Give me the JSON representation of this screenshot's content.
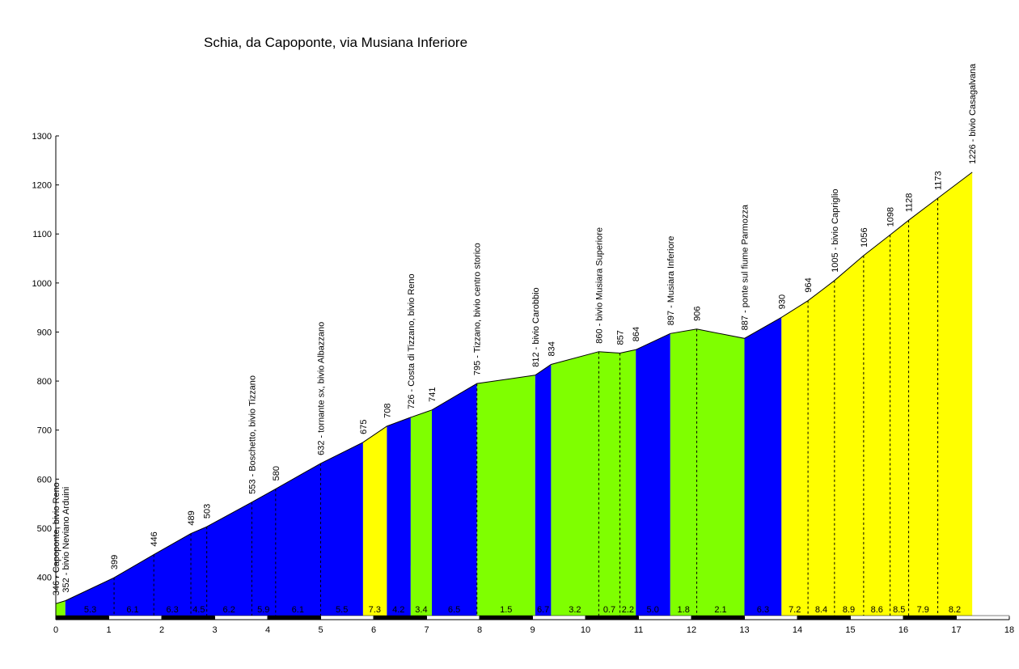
{
  "chart_data": {
    "type": "area",
    "title": "Schia, da Capoponte, via Musiana Inferiore",
    "xlabel": "",
    "ylabel": "",
    "xlim": [
      0,
      18
    ],
    "ylim": [
      320,
      1300
    ],
    "x_ticks": [
      0,
      1,
      2,
      3,
      4,
      5,
      6,
      7,
      8,
      9,
      10,
      11,
      12,
      13,
      14,
      15,
      16,
      17,
      18
    ],
    "y_ticks": [
      400,
      500,
      600,
      700,
      800,
      900,
      1000,
      1100,
      1200,
      1300
    ],
    "grid": false,
    "colors": {
      "green": "#7fff00",
      "blue": "#0000ff",
      "yellow": "#ffff00",
      "outline": "#000000"
    },
    "profile": [
      {
        "x": 0.0,
        "y": 346
      },
      {
        "x": 0.18,
        "y": 352
      },
      {
        "x": 1.1,
        "y": 399
      },
      {
        "x": 1.85,
        "y": 446
      },
      {
        "x": 2.55,
        "y": 489
      },
      {
        "x": 2.85,
        "y": 503
      },
      {
        "x": 3.7,
        "y": 553
      },
      {
        "x": 4.15,
        "y": 580
      },
      {
        "x": 5.0,
        "y": 632
      },
      {
        "x": 5.8,
        "y": 675
      },
      {
        "x": 6.25,
        "y": 708
      },
      {
        "x": 6.7,
        "y": 726
      },
      {
        "x": 7.1,
        "y": 741
      },
      {
        "x": 7.95,
        "y": 795
      },
      {
        "x": 9.05,
        "y": 812
      },
      {
        "x": 9.35,
        "y": 834
      },
      {
        "x": 10.25,
        "y": 860
      },
      {
        "x": 10.65,
        "y": 857
      },
      {
        "x": 10.95,
        "y": 864
      },
      {
        "x": 11.6,
        "y": 897
      },
      {
        "x": 12.1,
        "y": 906
      },
      {
        "x": 13.0,
        "y": 887
      },
      {
        "x": 13.7,
        "y": 930
      },
      {
        "x": 14.2,
        "y": 964
      },
      {
        "x": 14.7,
        "y": 1005
      },
      {
        "x": 15.25,
        "y": 1056
      },
      {
        "x": 15.75,
        "y": 1098
      },
      {
        "x": 16.1,
        "y": 1128
      },
      {
        "x": 16.65,
        "y": 1173
      },
      {
        "x": 17.3,
        "y": 1226
      }
    ],
    "segments": [
      {
        "from": 0.0,
        "to": 0.18,
        "color": "green",
        "gradient": ""
      },
      {
        "from": 0.18,
        "to": 5.8,
        "color": "blue",
        "gradient": ""
      },
      {
        "from": 5.8,
        "to": 6.25,
        "color": "yellow",
        "gradient": "7.3"
      },
      {
        "from": 6.25,
        "to": 6.7,
        "color": "blue",
        "gradient": "4.2"
      },
      {
        "from": 6.7,
        "to": 7.1,
        "color": "green",
        "gradient": "3.4"
      },
      {
        "from": 7.1,
        "to": 7.95,
        "color": "blue",
        "gradient": "6.5"
      },
      {
        "from": 7.95,
        "to": 9.05,
        "color": "green",
        "gradient": "1.5"
      },
      {
        "from": 9.05,
        "to": 9.35,
        "color": "blue",
        "gradient": "6.7"
      },
      {
        "from": 9.35,
        "to": 10.95,
        "color": "green",
        "gradient": ""
      },
      {
        "from": 10.95,
        "to": 11.6,
        "color": "blue",
        "gradient": "5.0"
      },
      {
        "from": 11.6,
        "to": 13.0,
        "color": "green",
        "gradient": ""
      },
      {
        "from": 13.0,
        "to": 13.7,
        "color": "blue",
        "gradient": "6.3"
      },
      {
        "from": 13.7,
        "to": 17.3,
        "color": "yellow",
        "gradient": ""
      }
    ],
    "gradient_labels": [
      {
        "x": 0.65,
        "label": "5.3"
      },
      {
        "x": 1.45,
        "label": "6.1"
      },
      {
        "x": 2.2,
        "label": "6.3"
      },
      {
        "x": 2.7,
        "label": "4.5"
      },
      {
        "x": 3.27,
        "label": "6.2"
      },
      {
        "x": 3.92,
        "label": "5.9"
      },
      {
        "x": 4.57,
        "label": "6.1"
      },
      {
        "x": 5.4,
        "label": "5.5"
      },
      {
        "x": 6.02,
        "label": "7.3"
      },
      {
        "x": 6.47,
        "label": "4.2"
      },
      {
        "x": 6.9,
        "label": "3.4"
      },
      {
        "x": 7.52,
        "label": "6.5"
      },
      {
        "x": 8.5,
        "label": "1.5"
      },
      {
        "x": 9.2,
        "label": "6.7"
      },
      {
        "x": 9.8,
        "label": "3.2"
      },
      {
        "x": 10.45,
        "label": "0.7"
      },
      {
        "x": 10.8,
        "label": "2.2"
      },
      {
        "x": 11.27,
        "label": "5.0"
      },
      {
        "x": 11.85,
        "label": "1.8"
      },
      {
        "x": 12.55,
        "label": "2.1"
      },
      {
        "x": 13.35,
        "label": "6.3"
      },
      {
        "x": 13.95,
        "label": "7.2"
      },
      {
        "x": 14.45,
        "label": "8.4"
      },
      {
        "x": 14.97,
        "label": "8.9"
      },
      {
        "x": 15.5,
        "label": "8.6"
      },
      {
        "x": 15.92,
        "label": "8.5"
      },
      {
        "x": 16.37,
        "label": "7.9"
      },
      {
        "x": 16.97,
        "label": "8.2"
      }
    ],
    "annotations": [
      {
        "x": 0.0,
        "y": 346,
        "label": "346 - Capoponte, bivio Reno",
        "dashed": false
      },
      {
        "x": 0.18,
        "y": 352,
        "label": "352 - bivio Neviano Arduini",
        "dashed": false
      },
      {
        "x": 1.1,
        "y": 399,
        "label": "399",
        "dashed": true
      },
      {
        "x": 1.85,
        "y": 446,
        "label": "446",
        "dashed": true
      },
      {
        "x": 2.55,
        "y": 489,
        "label": "489",
        "dashed": true
      },
      {
        "x": 2.85,
        "y": 503,
        "label": "503",
        "dashed": true
      },
      {
        "x": 3.7,
        "y": 553,
        "label": "553 - Boschetto, bivio Tizzano",
        "dashed": true
      },
      {
        "x": 4.15,
        "y": 580,
        "label": "580",
        "dashed": true
      },
      {
        "x": 5.0,
        "y": 632,
        "label": "632 - tornante sx, bivio Albazzano",
        "dashed": true
      },
      {
        "x": 5.8,
        "y": 675,
        "label": "675",
        "dashed": false
      },
      {
        "x": 6.25,
        "y": 708,
        "label": "708",
        "dashed": false
      },
      {
        "x": 6.7,
        "y": 726,
        "label": "726 - Costa di Tizzano, bivio Reno",
        "dashed": false
      },
      {
        "x": 7.1,
        "y": 741,
        "label": "741",
        "dashed": false
      },
      {
        "x": 7.95,
        "y": 795,
        "label": "795 - Tizzano, bivio centro storico",
        "dashed": true
      },
      {
        "x": 9.05,
        "y": 812,
        "label": "812 - bivio Carobbio",
        "dashed": false
      },
      {
        "x": 9.35,
        "y": 834,
        "label": "834",
        "dashed": false
      },
      {
        "x": 10.25,
        "y": 860,
        "label": "860 - bivio Musiara Superiore",
        "dashed": true
      },
      {
        "x": 10.65,
        "y": 857,
        "label": "857",
        "dashed": true
      },
      {
        "x": 10.95,
        "y": 864,
        "label": "864",
        "dashed": false
      },
      {
        "x": 11.6,
        "y": 897,
        "label": "897 - Musiara Inferiore",
        "dashed": false
      },
      {
        "x": 12.1,
        "y": 906,
        "label": "906",
        "dashed": true
      },
      {
        "x": 13.0,
        "y": 887,
        "label": "887 - ponte sul fiume Parmozza",
        "dashed": false
      },
      {
        "x": 13.7,
        "y": 930,
        "label": "930",
        "dashed": false
      },
      {
        "x": 14.2,
        "y": 964,
        "label": "964",
        "dashed": true
      },
      {
        "x": 14.7,
        "y": 1005,
        "label": "1005 - bivio Capriglio",
        "dashed": true
      },
      {
        "x": 15.25,
        "y": 1056,
        "label": "1056",
        "dashed": true
      },
      {
        "x": 15.75,
        "y": 1098,
        "label": "1098",
        "dashed": true
      },
      {
        "x": 16.1,
        "y": 1128,
        "label": "1128",
        "dashed": true
      },
      {
        "x": 16.65,
        "y": 1173,
        "label": "1173",
        "dashed": true
      },
      {
        "x": 17.3,
        "y": 1226,
        "label": "1226 - bivio Casagalvana",
        "dashed": false
      }
    ]
  }
}
